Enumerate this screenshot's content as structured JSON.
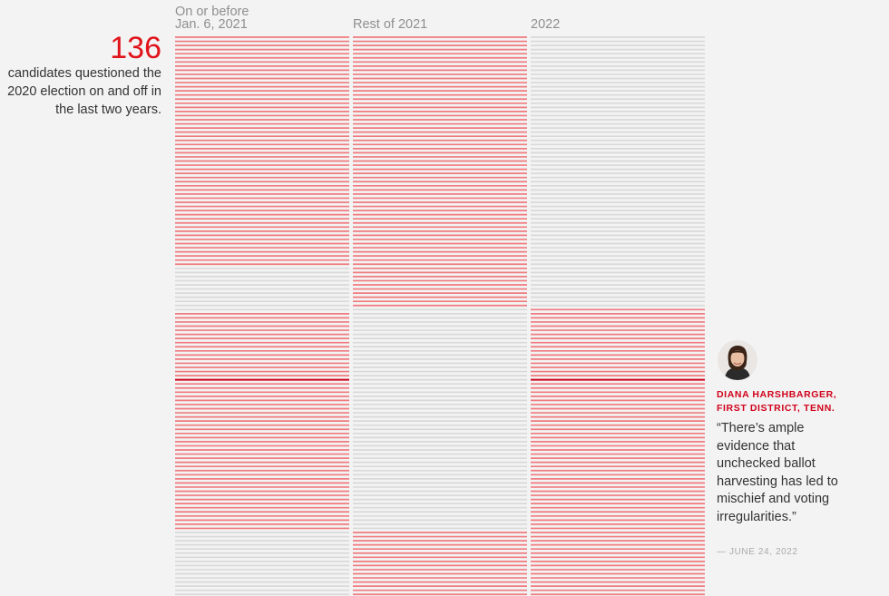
{
  "summary": {
    "count": "136",
    "description": "candidates questioned the 2020 election on and off in the last two years."
  },
  "chart_data": {
    "type": "heatmap",
    "columns": [
      {
        "label_line1": "On or before",
        "label_line2": "Jan. 6, 2021"
      },
      {
        "label_line1": "",
        "label_line2": "Rest of 2021"
      },
      {
        "label_line1": "",
        "label_line2": "2022"
      }
    ],
    "visible_rows": 136,
    "questioned": [
      {
        "column": 0,
        "ranges": [
          [
            0,
            55
          ],
          [
            67,
            119
          ]
        ]
      },
      {
        "column": 1,
        "ranges": [
          [
            0,
            65
          ],
          [
            120,
            135
          ]
        ]
      },
      {
        "column": 2,
        "ranges": [
          [
            66,
            135
          ]
        ]
      }
    ],
    "highlighted_row": 83,
    "colors": {
      "questioned": "#f07a7e",
      "not_questioned": "#d9d9d9",
      "highlight": "#d0021b"
    }
  },
  "quote": {
    "name_line1": "DIANA HARSHBARGER,",
    "name_line2": "FIRST DISTRICT, TENN.",
    "text": "“There’s ample evidence that unchecked ballot harvesting has led to mischief and voting irregularities.”",
    "date": "— JUNE 24, 2022"
  }
}
